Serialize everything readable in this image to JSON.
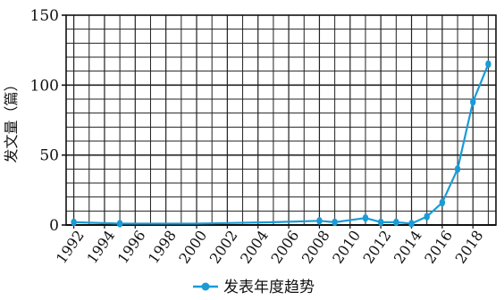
{
  "chart_data": {
    "type": "line",
    "ylabel": "发文量（篇）",
    "xlabel": "",
    "ylim": [
      0,
      150
    ],
    "yticks": [
      "0",
      "50",
      "100",
      "150"
    ],
    "xlim": [
      1991.5,
      2019.5
    ],
    "xticks": [
      "1992",
      "1994",
      "1996",
      "1998",
      "2000",
      "2002",
      "2004",
      "2006",
      "2008",
      "2010",
      "2012",
      "2014",
      "2016",
      "2018"
    ],
    "grid": true,
    "legend_position": "bottom-center",
    "series": [
      {
        "name": "发表年度趋势",
        "color": "#1a9bd7",
        "points": [
          {
            "x": 1992,
            "y": 2,
            "marker": true
          },
          {
            "x": 1995,
            "y": 1,
            "marker": true
          },
          {
            "x": 2000,
            "y": 1,
            "marker": false
          },
          {
            "x": 2005,
            "y": 2,
            "marker": false
          },
          {
            "x": 2008,
            "y": 3,
            "marker": true
          },
          {
            "x": 2009,
            "y": 2,
            "marker": true
          },
          {
            "x": 2011,
            "y": 5,
            "marker": true
          },
          {
            "x": 2012,
            "y": 2,
            "marker": true
          },
          {
            "x": 2013,
            "y": 2,
            "marker": true
          },
          {
            "x": 2014,
            "y": 1,
            "marker": true
          },
          {
            "x": 2015,
            "y": 6,
            "marker": true
          },
          {
            "x": 2016,
            "y": 16,
            "marker": true
          },
          {
            "x": 2017,
            "y": 40,
            "marker": true
          },
          {
            "x": 2018,
            "y": 88,
            "marker": true
          },
          {
            "x": 2019,
            "y": 115,
            "marker": true
          }
        ]
      }
    ]
  }
}
